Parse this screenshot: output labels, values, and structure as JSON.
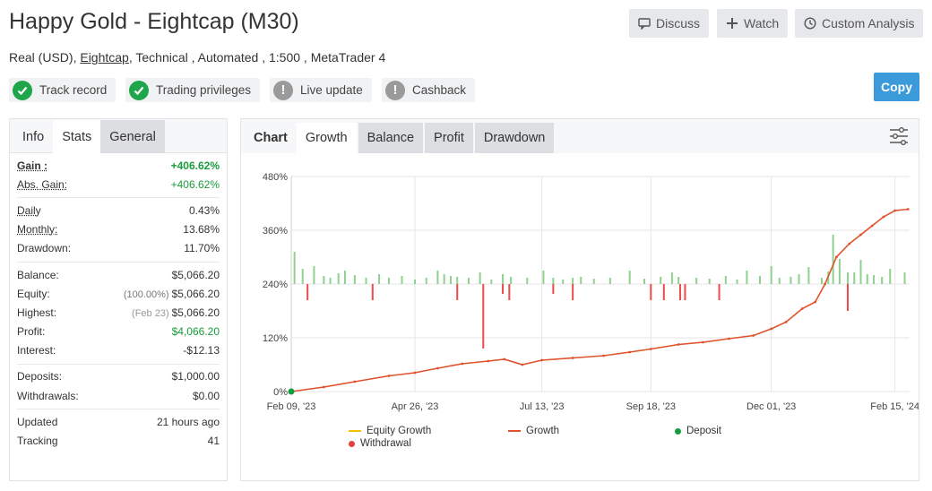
{
  "header": {
    "title": "Happy Gold - Eightcap (M30)",
    "subtitle_prefix": "Real (USD),",
    "subtitle_link": "Eightcap",
    "subtitle_suffix": ", Technical , Automated , 1:500 , MetaTrader 4",
    "buttons": {
      "discuss": "Discuss",
      "watch": "Watch",
      "analysis": "Custom Analysis"
    },
    "copy": "Copy"
  },
  "badges": [
    {
      "label": "Track record",
      "status": "ok"
    },
    {
      "label": "Trading privileges",
      "status": "ok"
    },
    {
      "label": "Live update",
      "status": "warn"
    },
    {
      "label": "Cashback",
      "status": "warn"
    }
  ],
  "left_tabs": {
    "info": "Info",
    "stats": "Stats",
    "general": "General"
  },
  "stats": {
    "gain": {
      "label": "Gain :",
      "value": "+406.62%"
    },
    "abs_gain": {
      "label": "Abs. Gain:",
      "value": "+406.62%"
    },
    "daily": {
      "label": "Daily",
      "value": "0.43%"
    },
    "monthly": {
      "label": "Monthly:",
      "value": "13.68%"
    },
    "drawdown": {
      "label": "Drawdown:",
      "value": "11.70%"
    },
    "balance": {
      "label": "Balance:",
      "value": "$5,066.20"
    },
    "equity": {
      "label": "Equity:",
      "prefix": "(100.00%)",
      "value": "$5,066.20"
    },
    "highest": {
      "label": "Highest:",
      "prefix": "(Feb 23)",
      "value": "$5,066.20"
    },
    "profit": {
      "label": "Profit:",
      "value": "$4,066.20"
    },
    "interest": {
      "label": "Interest:",
      "value": "-$12.13"
    },
    "deposits": {
      "label": "Deposits:",
      "value": "$1,000.00"
    },
    "withdrawals": {
      "label": "Withdrawals:",
      "value": "$0.00"
    },
    "updated": {
      "label": "Updated",
      "value": "21 hours ago"
    },
    "tracking": {
      "label": "Tracking",
      "value": "41"
    }
  },
  "chart_tabs": {
    "chart": "Chart",
    "growth": "Growth",
    "balance": "Balance",
    "profit": "Profit",
    "drawdown": "Drawdown"
  },
  "colors": {
    "growth": "#e0522b",
    "deposit_bar": "#8fd18f",
    "withdrawal_bar": "#ee4b4b",
    "equity": "#f2c200",
    "deposit_dot": "#169c3e",
    "withdrawal_dot": "#e34040"
  },
  "chart_data": {
    "type": "line",
    "title": "",
    "xlabel": "",
    "ylabel": "",
    "ylim": [
      0,
      480
    ],
    "y_ticks": [
      "0%",
      "120%",
      "240%",
      "360%",
      "480%"
    ],
    "y_tick_values": [
      0,
      120,
      240,
      360,
      480
    ],
    "x_ticks": [
      "Feb 09, '23",
      "Apr 26, '23",
      "Jul 13, '23",
      "Sep 18, '23",
      "Dec 01, '23",
      "Feb 15, '24"
    ],
    "x_tick_dates": [
      "2023-02-09",
      "2023-04-26",
      "2023-07-13",
      "2023-09-18",
      "2023-12-01",
      "2024-02-15"
    ],
    "x_range": [
      "2023-02-09",
      "2024-02-24"
    ],
    "grid": true,
    "legend_position": "bottom",
    "series": [
      {
        "name": "Growth",
        "x": [
          "2023-02-09",
          "2023-03-01",
          "2023-03-20",
          "2023-04-10",
          "2023-04-26",
          "2023-05-10",
          "2023-05-25",
          "2023-06-10",
          "2023-06-20",
          "2023-07-01",
          "2023-07-13",
          "2023-08-01",
          "2023-08-20",
          "2023-09-05",
          "2023-09-18",
          "2023-10-05",
          "2023-10-20",
          "2023-11-05",
          "2023-11-20",
          "2023-12-01",
          "2023-12-10",
          "2023-12-20",
          "2023-12-28",
          "2024-01-03",
          "2024-01-10",
          "2024-01-18",
          "2024-01-25",
          "2024-02-01",
          "2024-02-08",
          "2024-02-15",
          "2024-02-23"
        ],
        "values": [
          0,
          10,
          22,
          35,
          42,
          52,
          62,
          68,
          72,
          60,
          70,
          75,
          80,
          88,
          95,
          105,
          110,
          118,
          125,
          140,
          155,
          185,
          200,
          240,
          300,
          330,
          350,
          370,
          390,
          404,
          407
        ]
      },
      {
        "name": "Equity Growth",
        "x": [],
        "values": []
      },
      {
        "name": "Deposit",
        "x": [
          "2023-02-09"
        ],
        "values": [
          0
        ]
      },
      {
        "name": "Withdrawal",
        "x": [],
        "values": []
      }
    ],
    "bars": {
      "up": [
        [
          "2023-02-11",
          72
        ],
        [
          "2023-02-16",
          34
        ],
        [
          "2023-02-23",
          40
        ],
        [
          "2023-03-01",
          18
        ],
        [
          "2023-03-05",
          14
        ],
        [
          "2023-03-10",
          24
        ],
        [
          "2023-03-14",
          30
        ],
        [
          "2023-03-20",
          20
        ],
        [
          "2023-03-27",
          14
        ],
        [
          "2023-04-04",
          22
        ],
        [
          "2023-04-10",
          14
        ],
        [
          "2023-04-18",
          18
        ],
        [
          "2023-04-26",
          10
        ],
        [
          "2023-05-03",
          14
        ],
        [
          "2023-05-10",
          30
        ],
        [
          "2023-05-14",
          22
        ],
        [
          "2023-05-18",
          18
        ],
        [
          "2023-05-22",
          16
        ],
        [
          "2023-05-29",
          14
        ],
        [
          "2023-06-05",
          26
        ],
        [
          "2023-06-12",
          10
        ],
        [
          "2023-06-19",
          22
        ],
        [
          "2023-06-24",
          16
        ],
        [
          "2023-07-04",
          14
        ],
        [
          "2023-07-14",
          30
        ],
        [
          "2023-07-20",
          14
        ],
        [
          "2023-07-26",
          10
        ],
        [
          "2023-08-01",
          14
        ],
        [
          "2023-08-06",
          16
        ],
        [
          "2023-08-14",
          12
        ],
        [
          "2023-08-24",
          14
        ],
        [
          "2023-09-05",
          30
        ],
        [
          "2023-09-14",
          12
        ],
        [
          "2023-09-24",
          16
        ],
        [
          "2023-10-01",
          26
        ],
        [
          "2023-10-05",
          16
        ],
        [
          "2023-10-16",
          14
        ],
        [
          "2023-10-24",
          12
        ],
        [
          "2023-11-03",
          18
        ],
        [
          "2023-11-10",
          10
        ],
        [
          "2023-11-16",
          30
        ],
        [
          "2023-11-24",
          18
        ],
        [
          "2023-12-01",
          40
        ],
        [
          "2023-12-06",
          14
        ],
        [
          "2023-12-13",
          16
        ],
        [
          "2023-12-18",
          22
        ],
        [
          "2023-12-24",
          38
        ],
        [
          "2024-01-01",
          14
        ],
        [
          "2024-01-05",
          28
        ],
        [
          "2024-01-08",
          110
        ],
        [
          "2024-01-12",
          56
        ],
        [
          "2024-01-17",
          26
        ],
        [
          "2024-01-21",
          26
        ],
        [
          "2024-01-25",
          54
        ],
        [
          "2024-01-29",
          22
        ],
        [
          "2024-02-02",
          20
        ],
        [
          "2024-02-07",
          16
        ],
        [
          "2024-02-12",
          34
        ],
        [
          "2024-02-21",
          26
        ]
      ],
      "down": [
        [
          "2023-02-19",
          -36
        ],
        [
          "2023-03-31",
          -36
        ],
        [
          "2023-05-22",
          -36
        ],
        [
          "2023-06-07",
          -144
        ],
        [
          "2023-06-19",
          -22
        ],
        [
          "2023-06-23",
          -36
        ],
        [
          "2023-07-20",
          -22
        ],
        [
          "2023-08-01",
          -36
        ],
        [
          "2023-09-18",
          -36
        ],
        [
          "2023-09-26",
          -36
        ],
        [
          "2023-10-06",
          -36
        ],
        [
          "2023-10-09",
          -36
        ],
        [
          "2023-10-30",
          -36
        ],
        [
          "2024-01-17",
          -60
        ]
      ]
    }
  },
  "legend": {
    "equity": "Equity Growth",
    "growth": "Growth",
    "deposit": "Deposit",
    "withdrawal": "Withdrawal"
  }
}
